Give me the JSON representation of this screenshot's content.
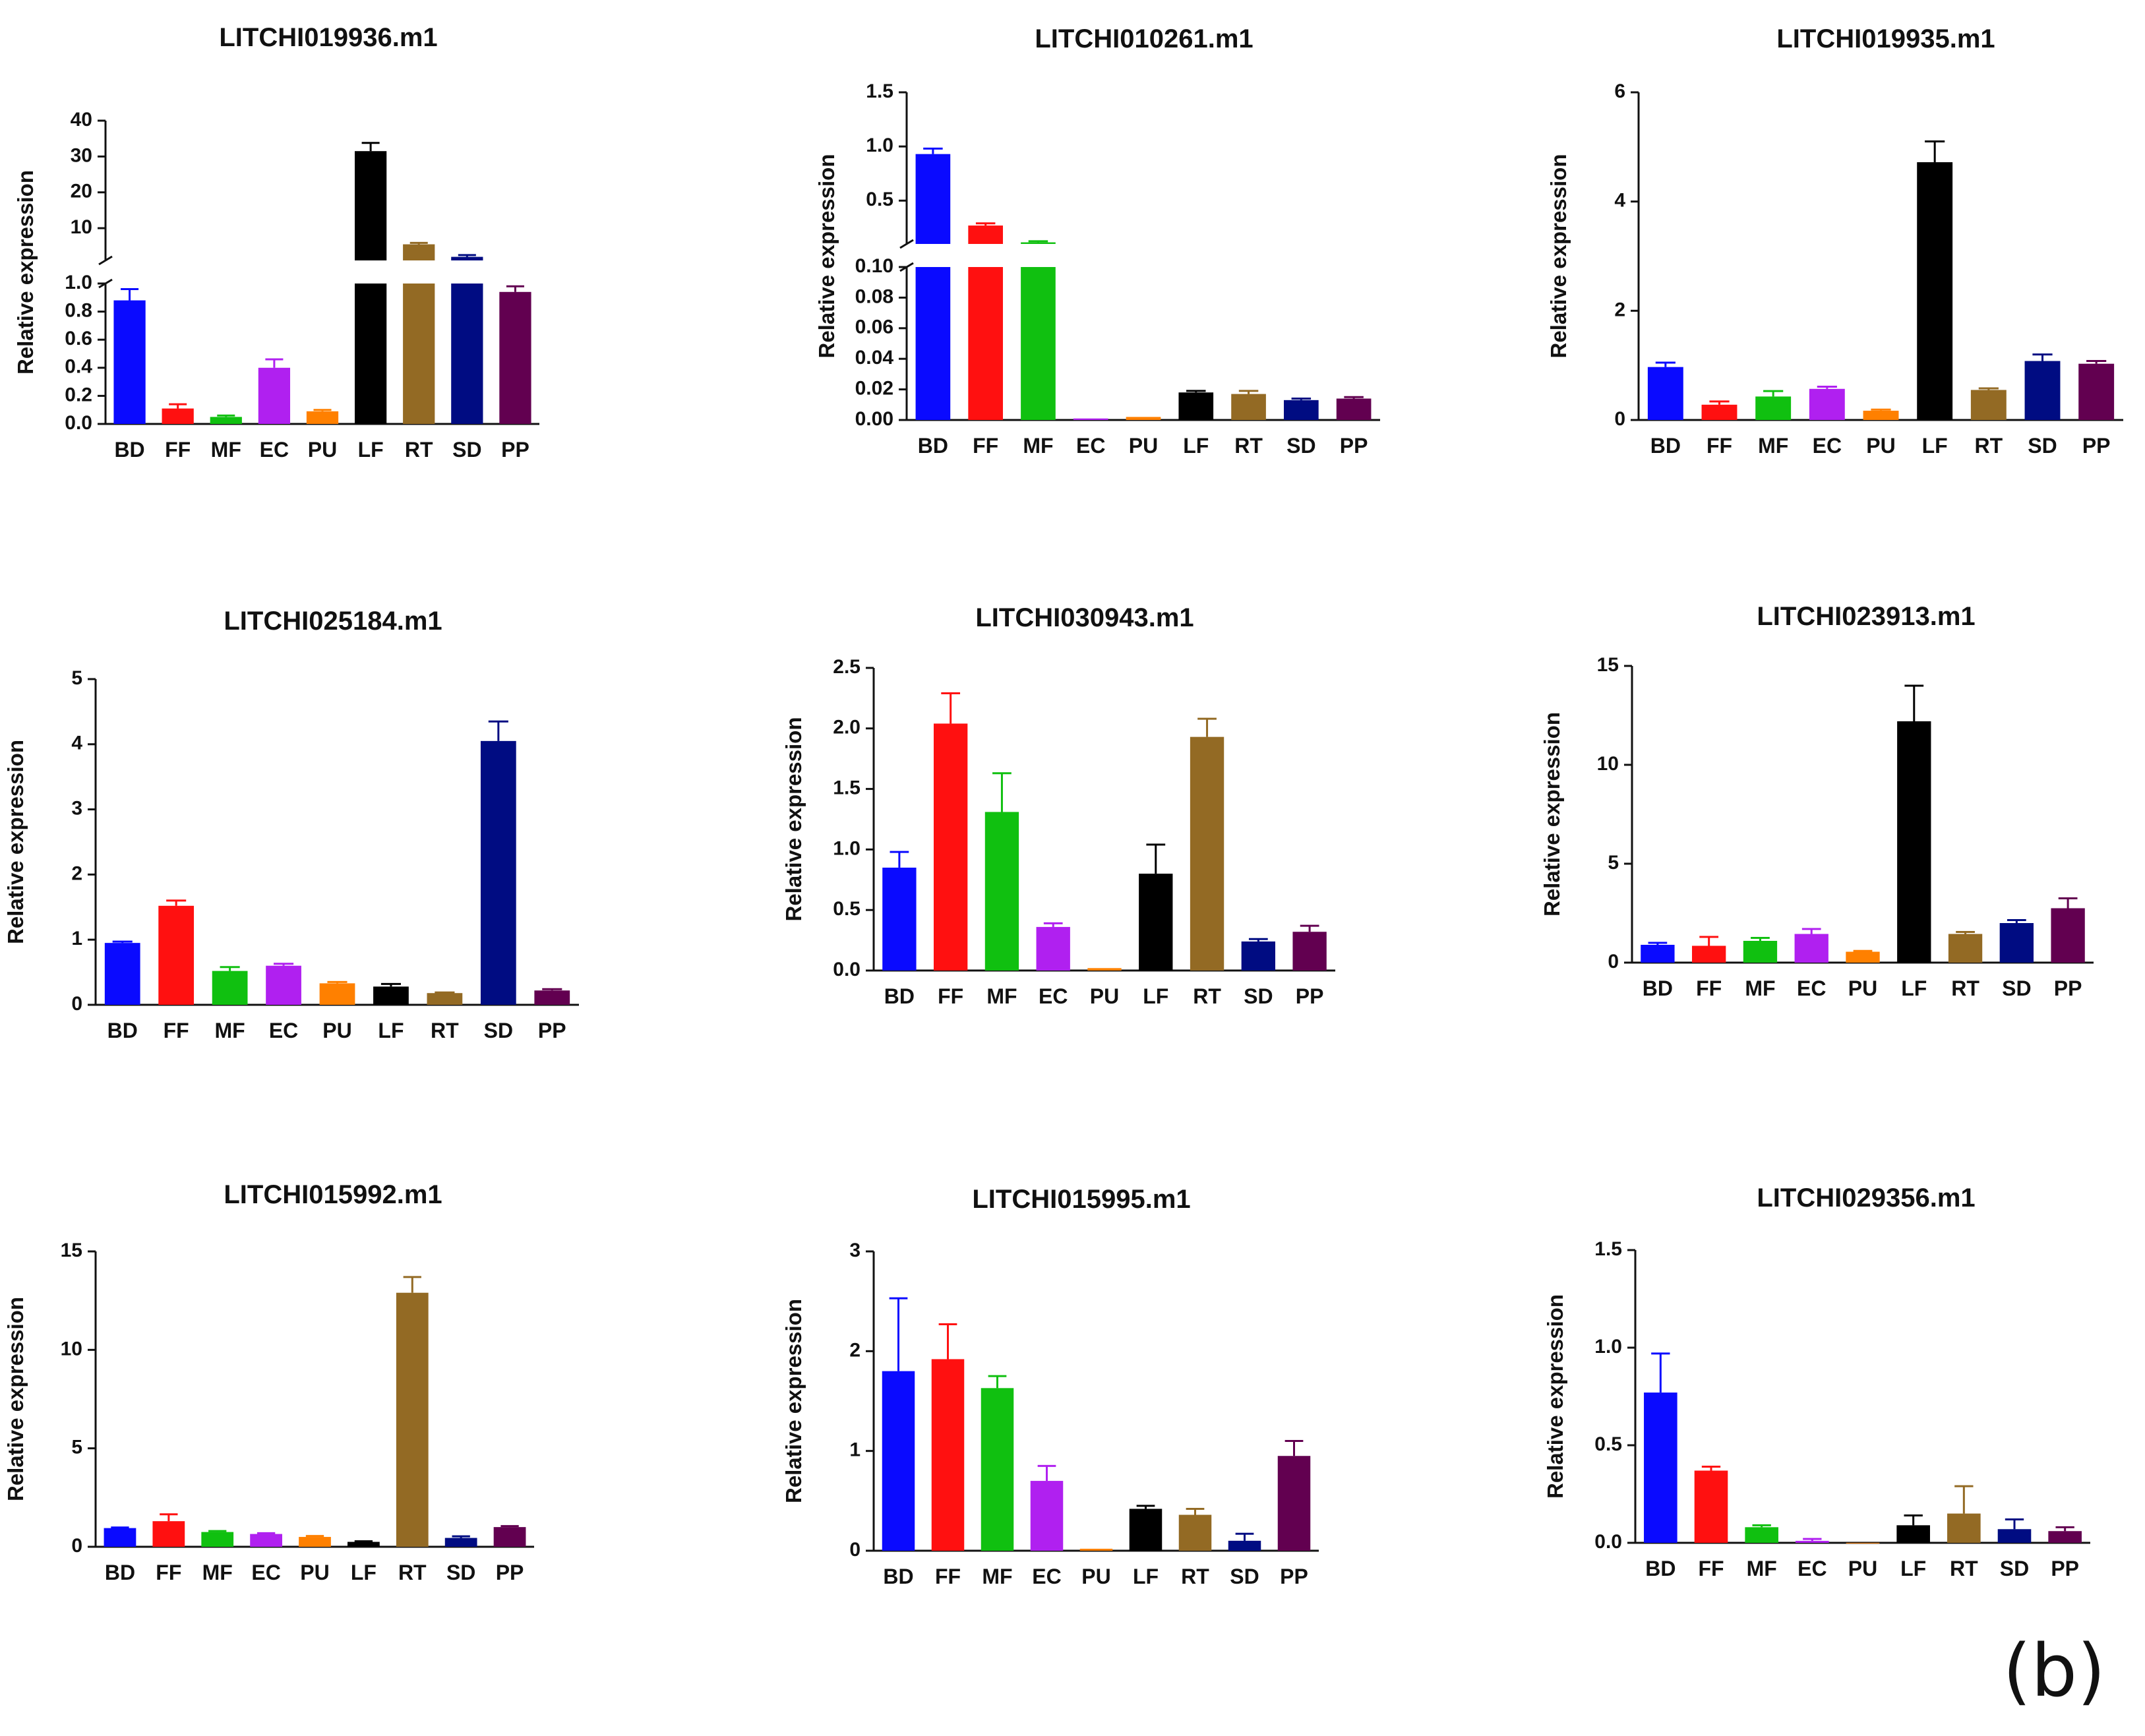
{
  "figure": {
    "panel_label": "(b)",
    "colors": {
      "BD": "#0a0aff",
      "FF": "#ff1010",
      "MF": "#10c010",
      "EC": "#b020f0",
      "PU": "#ff8000",
      "LF": "#000000",
      "RT": "#936a24",
      "SD": "#000c82",
      "PP": "#620050",
      "axis": "#111111"
    }
  },
  "chart_data": [
    {
      "type": "bar",
      "title": "LITCHI019936.m1",
      "ylabel": "Relative expression",
      "categories": [
        "BD",
        "FF",
        "MF",
        "EC",
        "PU",
        "LF",
        "RT",
        "SD",
        "PP"
      ],
      "values": [
        0.88,
        0.11,
        0.05,
        0.4,
        0.09,
        31.5,
        5.5,
        2.0,
        0.94
      ],
      "errors": [
        0.08,
        0.03,
        0.01,
        0.06,
        0.01,
        2.3,
        0.4,
        0.5,
        0.04
      ],
      "broken_axis": {
        "lower": {
          "ylim": [
            0,
            1.0
          ],
          "ticks": [
            0.0,
            0.2,
            0.4,
            0.6,
            0.8,
            1.0
          ],
          "tick_labels": [
            "0.0",
            "0.2",
            "0.4",
            "0.6",
            "0.8",
            "1.0"
          ]
        },
        "upper": {
          "ylim": [
            1.0,
            40
          ],
          "ticks": [
            10,
            20,
            30,
            40
          ],
          "tick_labels": [
            "10",
            "20",
            "30",
            "40"
          ]
        }
      }
    },
    {
      "type": "bar",
      "title": "LITCHI010261.m1",
      "ylabel": "Relative expression",
      "categories": [
        "BD",
        "FF",
        "MF",
        "EC",
        "PU",
        "LF",
        "RT",
        "SD",
        "PP"
      ],
      "values": [
        0.93,
        0.27,
        0.115,
        0.001,
        0.002,
        0.018,
        0.017,
        0.013,
        0.014
      ],
      "errors": [
        0.05,
        0.02,
        0.01,
        0.0,
        0.0,
        0.001,
        0.002,
        0.001,
        0.001
      ],
      "broken_axis": {
        "lower": {
          "ylim": [
            0,
            0.1
          ],
          "ticks": [
            0.0,
            0.02,
            0.04,
            0.06,
            0.08,
            0.1
          ],
          "tick_labels": [
            "0.00",
            "0.02",
            "0.04",
            "0.06",
            "0.08",
            "0.10"
          ]
        },
        "upper": {
          "ylim": [
            0.1,
            1.5
          ],
          "ticks": [
            0.5,
            1.0,
            1.5
          ],
          "tick_labels": [
            "0.5",
            "1.0",
            "1.5"
          ]
        }
      }
    },
    {
      "type": "bar",
      "title": "LITCHI019935.m1",
      "ylabel": "Relative expression",
      "categories": [
        "BD",
        "FF",
        "MF",
        "EC",
        "PU",
        "LF",
        "RT",
        "SD",
        "PP"
      ],
      "values": [
        0.97,
        0.28,
        0.43,
        0.57,
        0.17,
        4.72,
        0.55,
        1.08,
        1.03
      ],
      "errors": [
        0.08,
        0.06,
        0.1,
        0.04,
        0.02,
        0.38,
        0.03,
        0.12,
        0.05
      ],
      "ylim": [
        0,
        6
      ],
      "ticks": [
        0,
        2,
        4,
        6
      ],
      "tick_labels": [
        "0",
        "2",
        "4",
        "6"
      ]
    },
    {
      "type": "bar",
      "title": "LITCHI025184.m1",
      "ylabel": "Relative expression",
      "categories": [
        "BD",
        "FF",
        "MF",
        "EC",
        "PU",
        "LF",
        "RT",
        "SD",
        "PP"
      ],
      "values": [
        0.95,
        1.52,
        0.52,
        0.6,
        0.33,
        0.28,
        0.18,
        4.05,
        0.22
      ],
      "errors": [
        0.02,
        0.08,
        0.06,
        0.03,
        0.02,
        0.04,
        0.01,
        0.3,
        0.02
      ],
      "ylim": [
        0,
        5
      ],
      "ticks": [
        0,
        1,
        2,
        3,
        4,
        5
      ],
      "tick_labels": [
        "0",
        "1",
        "2",
        "3",
        "4",
        "5"
      ]
    },
    {
      "type": "bar",
      "title": "LITCHI030943.m1",
      "ylabel": "Relative expression",
      "categories": [
        "BD",
        "FF",
        "MF",
        "EC",
        "PU",
        "LF",
        "RT",
        "SD",
        "PP"
      ],
      "values": [
        0.85,
        2.04,
        1.31,
        0.36,
        0.02,
        0.8,
        1.93,
        0.24,
        0.32
      ],
      "errors": [
        0.13,
        0.25,
        0.32,
        0.03,
        0.0,
        0.24,
        0.15,
        0.02,
        0.05
      ],
      "ylim": [
        0,
        2.5
      ],
      "ticks": [
        0,
        0.5,
        1.0,
        1.5,
        2.0,
        2.5
      ],
      "tick_labels": [
        "0.0",
        "0.5",
        "1.0",
        "1.5",
        "2.0",
        "2.5"
      ]
    },
    {
      "type": "bar",
      "title": "LITCHI023913.m1",
      "ylabel": "Relative expression",
      "categories": [
        "BD",
        "FF",
        "MF",
        "EC",
        "PU",
        "LF",
        "RT",
        "SD",
        "PP"
      ],
      "values": [
        0.9,
        0.85,
        1.1,
        1.45,
        0.55,
        12.2,
        1.45,
        2.0,
        2.75
      ],
      "errors": [
        0.1,
        0.45,
        0.15,
        0.25,
        0.04,
        1.8,
        0.1,
        0.15,
        0.5
      ],
      "ylim": [
        0,
        15
      ],
      "ticks": [
        0,
        5,
        10,
        15
      ],
      "tick_labels": [
        "0",
        "5",
        "10",
        "15"
      ]
    },
    {
      "type": "bar",
      "title": "LITCHI015992.m1",
      "ylabel": "Relative expression",
      "categories": [
        "BD",
        "FF",
        "MF",
        "EC",
        "PU",
        "LF",
        "RT",
        "SD",
        "PP"
      ],
      "values": [
        0.95,
        1.3,
        0.75,
        0.65,
        0.5,
        0.25,
        12.9,
        0.45,
        1.0
      ],
      "errors": [
        0.03,
        0.35,
        0.05,
        0.04,
        0.05,
        0.03,
        0.8,
        0.08,
        0.05
      ],
      "ylim": [
        0,
        15
      ],
      "ticks": [
        0,
        5,
        10,
        15
      ],
      "tick_labels": [
        "0",
        "5",
        "10",
        "15"
      ]
    },
    {
      "type": "bar",
      "title": "LITCHI015995.m1",
      "ylabel": "Relative expression",
      "categories": [
        "BD",
        "FF",
        "MF",
        "EC",
        "PU",
        "LF",
        "RT",
        "SD",
        "PP"
      ],
      "values": [
        1.8,
        1.92,
        1.63,
        0.7,
        0.02,
        0.42,
        0.36,
        0.1,
        0.95
      ],
      "errors": [
        0.73,
        0.35,
        0.12,
        0.15,
        0.0,
        0.03,
        0.06,
        0.07,
        0.15
      ],
      "ylim": [
        0,
        3
      ],
      "ticks": [
        0,
        1,
        2,
        3
      ],
      "tick_labels": [
        "0",
        "1",
        "2",
        "3"
      ]
    },
    {
      "type": "bar",
      "title": "LITCHI029356.m1",
      "ylabel": "Relative expression",
      "categories": [
        "BD",
        "FF",
        "MF",
        "EC",
        "PU",
        "LF",
        "RT",
        "SD",
        "PP"
      ],
      "values": [
        0.77,
        0.37,
        0.08,
        0.01,
        0.0,
        0.09,
        0.15,
        0.07,
        0.06
      ],
      "errors": [
        0.2,
        0.02,
        0.01,
        0.01,
        0.0,
        0.05,
        0.14,
        0.05,
        0.02
      ],
      "ylim": [
        0,
        1.5
      ],
      "ticks": [
        0,
        0.5,
        1.0,
        1.5
      ],
      "tick_labels": [
        "0.0",
        "0.5",
        "1.0",
        "1.5"
      ]
    }
  ]
}
